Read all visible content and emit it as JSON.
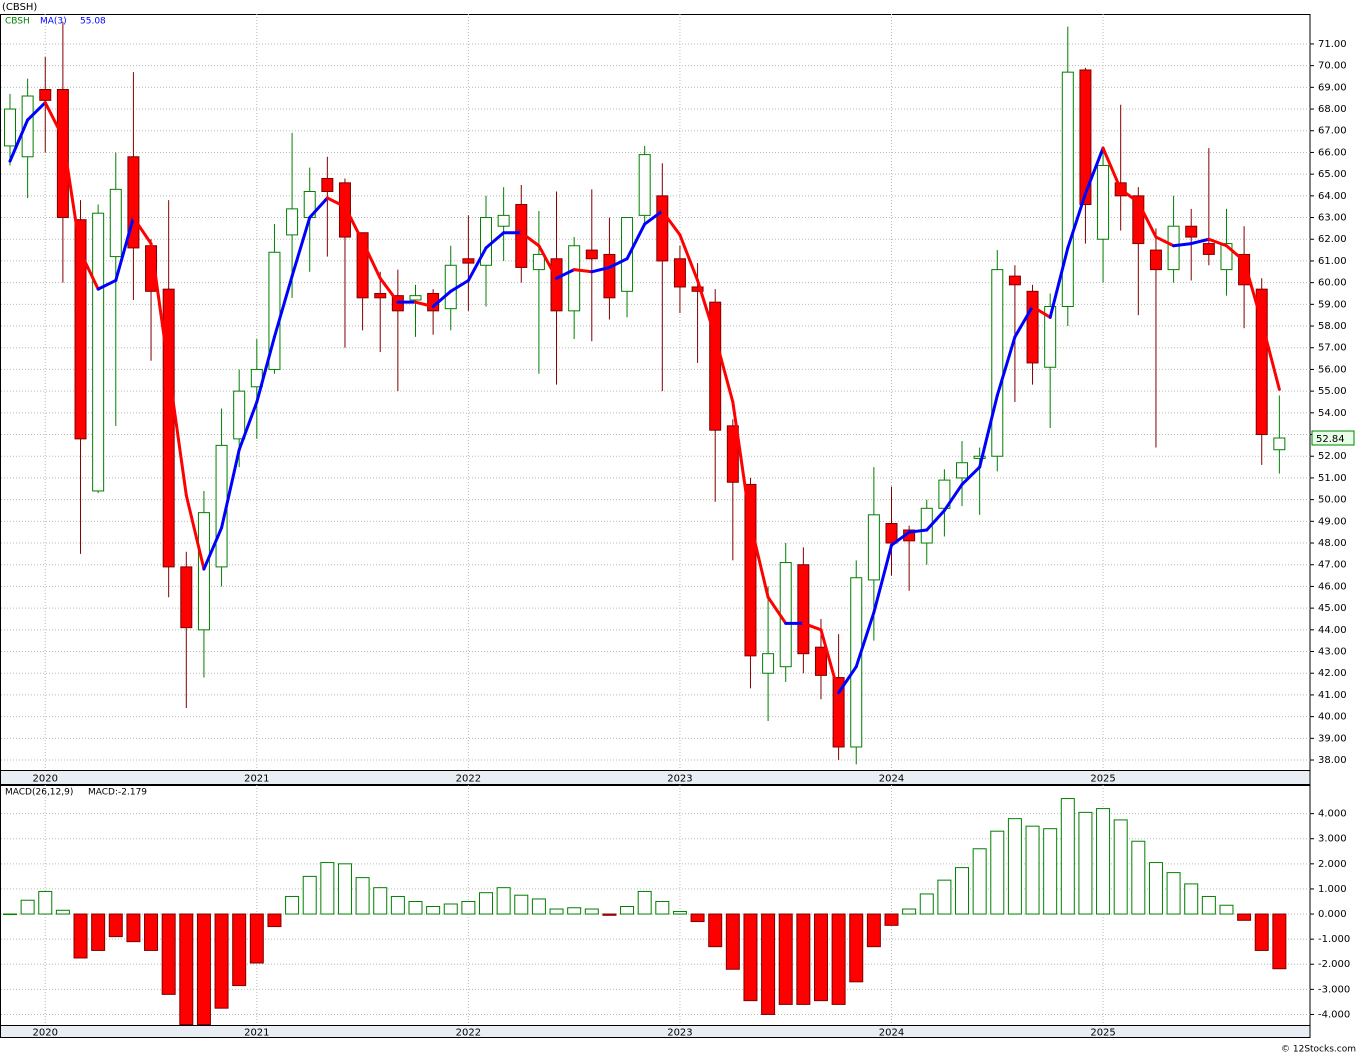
{
  "chart_data": [
    {
      "type": "candlestick",
      "title": "(CBSH)",
      "symbol": "CBSH",
      "symbol_color": "#008000",
      "categories": [
        null,
        null,
        "2020",
        null,
        null,
        null,
        null,
        null,
        null,
        null,
        null,
        null,
        null,
        null,
        "2021",
        null,
        null,
        null,
        null,
        null,
        null,
        null,
        null,
        null,
        null,
        null,
        "2022",
        null,
        null,
        null,
        null,
        null,
        null,
        null,
        null,
        null,
        null,
        null,
        "2023",
        null,
        null,
        null,
        null,
        null,
        null,
        null,
        null,
        null,
        null,
        null,
        "2024",
        null,
        null,
        null,
        null,
        null,
        null,
        null,
        null,
        null,
        null,
        null,
        "2025",
        null,
        null,
        null,
        null,
        null,
        null,
        null,
        null,
        null,
        null
      ],
      "open": [
        66.3,
        65.8,
        68.9,
        68.9,
        62.9,
        50.4,
        61.2,
        65.8,
        61.7,
        59.7,
        46.9,
        44.0,
        46.9,
        52.8,
        55.2,
        56.0,
        62.2,
        63.0,
        64.8,
        64.6,
        62.3,
        59.5,
        59.4,
        59.2,
        59.5,
        58.8,
        61.1,
        60.8,
        62.6,
        63.6,
        60.6,
        61.1,
        58.7,
        61.5,
        61.3,
        59.6,
        63.1,
        64.0,
        61.1,
        59.8,
        59.1,
        53.4,
        50.7,
        42.0,
        42.3,
        47.0,
        43.2,
        41.8,
        38.6,
        46.3,
        48.9,
        48.6,
        48.0,
        49.6,
        51.0,
        51.9,
        52.0,
        60.3,
        59.6,
        56.1,
        58.9,
        69.8,
        62.0,
        64.6,
        64.0,
        61.5,
        60.6,
        62.6,
        61.8,
        60.6,
        61.3,
        59.7,
        52.3
      ],
      "high": [
        68.7,
        69.4,
        70.4,
        72.0,
        63.8,
        63.6,
        66.0,
        69.7,
        62.0,
        63.8,
        47.6,
        50.4,
        54.2,
        56.0,
        57.4,
        62.7,
        66.9,
        65.3,
        65.8,
        64.8,
        62.3,
        60.5,
        60.6,
        59.9,
        59.7,
        61.7,
        63.1,
        64.0,
        64.4,
        64.5,
        63.3,
        64.2,
        62.1,
        64.3,
        63.0,
        63.0,
        66.3,
        65.5,
        61.7,
        60.9,
        59.7,
        53.7,
        51.0,
        46.0,
        48.0,
        47.8,
        44.5,
        43.8,
        47.2,
        51.5,
        50.6,
        48.8,
        50.0,
        51.4,
        52.7,
        52.4,
        61.5,
        60.8,
        59.9,
        59.5,
        71.8,
        69.9,
        66.0,
        68.2,
        64.4,
        62.5,
        64.0,
        63.4,
        66.2,
        63.4,
        62.6,
        60.2,
        54.8
      ],
      "low": [
        65.4,
        63.9,
        66.0,
        60.0,
        47.5,
        50.3,
        53.4,
        59.2,
        56.4,
        45.5,
        40.4,
        41.8,
        46.0,
        51.5,
        52.8,
        55.8,
        59.3,
        60.5,
        61.2,
        57.0,
        57.8,
        56.8,
        55.0,
        57.5,
        57.6,
        57.8,
        58.7,
        58.9,
        61.0,
        60.0,
        55.8,
        55.3,
        57.4,
        57.3,
        58.3,
        58.4,
        62.6,
        55.0,
        58.6,
        56.3,
        49.9,
        47.2,
        41.3,
        39.8,
        41.6,
        42.0,
        40.8,
        38.0,
        37.8,
        43.5,
        46.5,
        45.8,
        47.0,
        48.3,
        49.7,
        49.3,
        51.3,
        54.5,
        55.3,
        53.3,
        58.0,
        61.8,
        60.0,
        62.4,
        58.5,
        52.4,
        60.0,
        60.1,
        60.8,
        59.4,
        57.9,
        51.6,
        51.2
      ],
      "close": [
        68.0,
        68.6,
        68.4,
        63.0,
        52.8,
        63.2,
        64.3,
        61.6,
        59.6,
        46.9,
        44.1,
        49.4,
        52.5,
        55.0,
        56.0,
        61.4,
        63.4,
        64.2,
        64.2,
        62.1,
        59.3,
        59.3,
        58.7,
        59.4,
        58.7,
        60.8,
        60.9,
        63.0,
        63.1,
        60.7,
        61.3,
        58.7,
        61.7,
        61.1,
        59.3,
        63.0,
        65.9,
        61.0,
        59.8,
        59.6,
        53.2,
        50.8,
        42.8,
        42.9,
        47.1,
        42.9,
        41.9,
        38.6,
        46.4,
        49.3,
        48.0,
        48.1,
        49.6,
        50.9,
        51.7,
        52.0,
        60.6,
        59.9,
        56.3,
        58.9,
        69.7,
        63.6,
        65.4,
        64.0,
        61.8,
        60.6,
        62.6,
        62.1,
        61.3,
        61.8,
        59.9,
        53.0,
        52.84
      ],
      "series": [
        {
          "name": "MA(3)",
          "color": "#0000ff",
          "down_color": "#ff0000",
          "values": [
            65.6,
            67.5,
            68.3,
            66.7,
            61.4,
            59.7,
            60.1,
            63.0,
            61.8,
            56.0,
            50.2,
            46.8,
            48.7,
            52.3,
            54.5,
            57.5,
            60.3,
            63.0,
            63.9,
            63.5,
            61.9,
            60.2,
            59.1,
            59.1,
            58.9,
            59.6,
            60.1,
            61.6,
            62.3,
            62.3,
            61.7,
            60.2,
            60.6,
            60.5,
            60.7,
            61.1,
            62.7,
            63.3,
            62.2,
            60.1,
            57.5,
            54.5,
            48.9,
            45.5,
            44.3,
            44.3,
            44.0,
            41.1,
            42.3,
            44.8,
            47.9,
            48.5,
            48.6,
            49.5,
            50.7,
            51.5,
            54.8,
            57.5,
            58.9,
            58.4,
            61.6,
            64.1,
            66.2,
            64.3,
            63.7,
            62.1,
            61.7,
            61.8,
            62.0,
            61.7,
            61.0,
            58.2,
            55.08
          ]
        }
      ],
      "up_color": "#008000",
      "down_color": "#ff0000",
      "ylim": [
        37.54,
        72.38
      ],
      "yticks": [
        {
          "value": 38,
          "label": "38.00"
        },
        {
          "value": 39,
          "label": "39.00"
        },
        {
          "value": 40,
          "label": "40.00"
        },
        {
          "value": 41,
          "label": "41.00"
        },
        {
          "value": 42,
          "label": "42.00"
        },
        {
          "value": 43,
          "label": "43.00"
        },
        {
          "value": 44,
          "label": "44.00"
        },
        {
          "value": 45,
          "label": "45.00"
        },
        {
          "value": 46,
          "label": "46.00"
        },
        {
          "value": 47,
          "label": "47.00"
        },
        {
          "value": 48,
          "label": "48.00"
        },
        {
          "value": 49,
          "label": "49.00"
        },
        {
          "value": 50,
          "label": "50.00"
        },
        {
          "value": 51,
          "label": "51.00"
        },
        {
          "value": 52,
          "label": "52.00"
        },
        {
          "value": 53,
          "label": "53.00"
        },
        {
          "value": 54,
          "label": "54.00"
        },
        {
          "value": 55,
          "label": "55.00"
        },
        {
          "value": 56,
          "label": "56.00"
        },
        {
          "value": 57,
          "label": "57.00"
        },
        {
          "value": 58,
          "label": "58.00"
        },
        {
          "value": 59,
          "label": "59.00"
        },
        {
          "value": 60,
          "label": "60.00"
        },
        {
          "value": 61,
          "label": "61.00"
        },
        {
          "value": 62,
          "label": "62.00"
        },
        {
          "value": 63,
          "label": "63.00"
        },
        {
          "value": 64,
          "label": "64.00"
        },
        {
          "value": 65,
          "label": "65.00"
        },
        {
          "value": 66,
          "label": "66.00"
        },
        {
          "value": 67,
          "label": "67.00"
        },
        {
          "value": 68,
          "label": "68.00"
        },
        {
          "value": 69,
          "label": "69.00"
        },
        {
          "value": 70,
          "label": "70.00"
        },
        {
          "value": 71,
          "label": "71.00"
        }
      ],
      "grid": true
    },
    {
      "type": "histogram_bar",
      "title": "MACD(26,12,9)",
      "value_label": "MACD:-2.179",
      "values": [
        0.0,
        0.55,
        0.9,
        0.15,
        -1.75,
        -1.45,
        -0.9,
        -1.1,
        -1.45,
        -3.2,
        -4.4,
        -4.4,
        -3.75,
        -2.85,
        -1.95,
        -0.5,
        0.7,
        1.5,
        2.05,
        2.0,
        1.45,
        1.05,
        0.7,
        0.5,
        0.3,
        0.4,
        0.5,
        0.85,
        1.05,
        0.75,
        0.6,
        0.2,
        0.25,
        0.2,
        -0.05,
        0.3,
        0.9,
        0.5,
        0.1,
        -0.3,
        -1.3,
        -2.2,
        -3.45,
        -4.0,
        -3.6,
        -3.6,
        -3.45,
        -3.6,
        -2.7,
        -1.3,
        -0.45,
        0.2,
        0.8,
        1.35,
        1.85,
        2.6,
        3.3,
        3.8,
        3.5,
        3.4,
        4.6,
        4.05,
        4.2,
        3.75,
        2.9,
        2.05,
        1.65,
        1.2,
        0.7,
        0.35,
        -0.25,
        -1.45,
        -2.179
      ],
      "up_color": "#008000",
      "down_color": "#ff0000",
      "ylim": [
        -4.42,
        5.14
      ],
      "yticks": [
        {
          "value": -4,
          "label": "-4.000"
        },
        {
          "value": -3,
          "label": "-3.000"
        },
        {
          "value": -2,
          "label": "-2.000"
        },
        {
          "value": -1,
          "label": "-1.000"
        },
        {
          "value": 0,
          "label": "0.000"
        },
        {
          "value": 1,
          "label": "1.000"
        },
        {
          "value": 2,
          "label": "2.000"
        },
        {
          "value": 3,
          "label": "3.000"
        },
        {
          "value": 4,
          "label": "4.000"
        }
      ],
      "grid": true
    }
  ],
  "footer": "© 12Stocks.com"
}
